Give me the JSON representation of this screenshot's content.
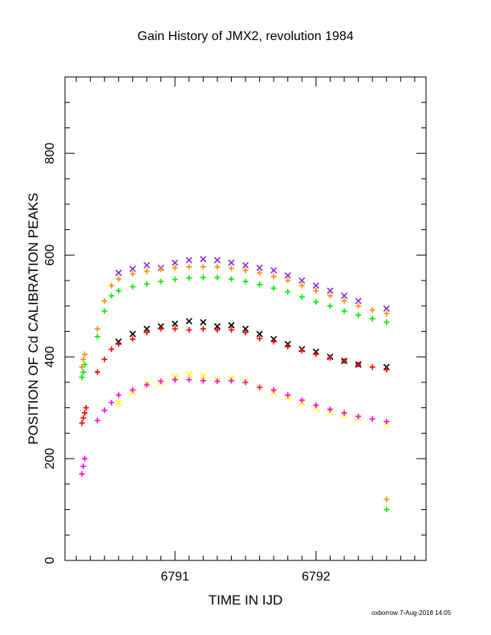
{
  "chart_data": {
    "type": "scatter",
    "title": "Gain History of JMX2, revolution 1984",
    "xlabel": "TIME IN IJD",
    "ylabel": "POSITION OF Cd CALIBRATION PEAKS",
    "xlim": [
      6790.22,
      6792.78
    ],
    "ylim": [
      0,
      950
    ],
    "x_ticks": [
      6791,
      6792
    ],
    "x_tick_labels": [
      "6791",
      "6792"
    ],
    "y_ticks": [
      0,
      200,
      400,
      600,
      800
    ],
    "y_tick_labels": [
      "0",
      "200",
      "400",
      "600",
      "800"
    ],
    "grid": false,
    "legend": "none",
    "series": [
      {
        "color": "#8a2be2",
        "marker": "x",
        "x": [
          6790.6,
          6790.7,
          6790.8,
          6790.9,
          6791.0,
          6791.1,
          6791.2,
          6791.3,
          6791.4,
          6791.5,
          6791.6,
          6791.7,
          6791.8,
          6791.9,
          6792.0,
          6792.1,
          6792.2,
          6792.3,
          6792.5
        ],
        "y": [
          565,
          573,
          580,
          575,
          585,
          590,
          592,
          590,
          585,
          580,
          575,
          570,
          560,
          550,
          540,
          530,
          520,
          510,
          495
        ]
      },
      {
        "color": "#ff8c00",
        "marker": "+",
        "x": [
          6790.45,
          6790.5,
          6790.55,
          6790.6,
          6790.7,
          6790.8,
          6790.9,
          6791.0,
          6791.1,
          6791.2,
          6791.3,
          6791.4,
          6791.5,
          6791.6,
          6791.7,
          6791.8,
          6791.9,
          6792.0,
          6792.1,
          6792.2,
          6792.3,
          6792.4,
          6792.5
        ],
        "y": [
          455,
          510,
          540,
          553,
          563,
          568,
          572,
          575,
          577,
          577,
          577,
          574,
          570,
          565,
          558,
          550,
          540,
          530,
          520,
          510,
          500,
          492,
          485
        ]
      },
      {
        "color": "#00ee00",
        "marker": "+",
        "x": [
          6790.45,
          6790.5,
          6790.55,
          6790.6,
          6790.7,
          6790.8,
          6790.9,
          6791.0,
          6791.1,
          6791.2,
          6791.3,
          6791.4,
          6791.5,
          6791.6,
          6791.7,
          6791.8,
          6791.9,
          6792.0,
          6792.1,
          6792.2,
          6792.3,
          6792.4,
          6792.5
        ],
        "y": [
          440,
          490,
          520,
          530,
          538,
          543,
          548,
          552,
          555,
          556,
          556,
          553,
          548,
          542,
          535,
          528,
          518,
          508,
          500,
          490,
          482,
          475,
          468
        ]
      },
      {
        "color": "#000000",
        "marker": "x",
        "x": [
          6790.6,
          6790.7,
          6790.8,
          6790.9,
          6791.0,
          6791.1,
          6791.2,
          6791.3,
          6791.4,
          6791.5,
          6791.6,
          6791.7,
          6791.8,
          6791.9,
          6792.0,
          6792.1,
          6792.2,
          6792.3,
          6792.5
        ],
        "y": [
          430,
          445,
          455,
          460,
          465,
          470,
          468,
          460,
          462,
          455,
          445,
          435,
          425,
          415,
          410,
          400,
          392,
          385,
          380
        ]
      },
      {
        "color": "#ff0000",
        "marker": "+",
        "x": [
          6790.45,
          6790.5,
          6790.55,
          6790.6,
          6790.7,
          6790.8,
          6790.9,
          6791.0,
          6791.1,
          6791.2,
          6791.3,
          6791.4,
          6791.5,
          6791.6,
          6791.7,
          6791.8,
          6791.9,
          6792.0,
          6792.1,
          6792.2,
          6792.3,
          6792.4,
          6792.5
        ],
        "y": [
          370,
          395,
          415,
          425,
          435,
          448,
          455,
          455,
          453,
          455,
          453,
          453,
          448,
          436,
          430,
          420,
          412,
          405,
          398,
          392,
          385,
          380,
          375
        ]
      },
      {
        "color": "#ffff00",
        "marker": "x",
        "x": [
          6790.6,
          6790.7,
          6790.8,
          6790.9,
          6791.0,
          6791.1,
          6791.2,
          6791.3,
          6791.4,
          6791.5,
          6791.6,
          6791.7,
          6791.8,
          6791.9,
          6792.0,
          6792.1,
          6792.2,
          6792.3,
          6792.5
        ],
        "y": [
          310,
          330,
          345,
          350,
          360,
          365,
          362,
          355,
          358,
          352,
          340,
          330,
          320,
          310,
          300,
          292,
          285,
          280,
          270
        ]
      },
      {
        "color": "#ff00ff",
        "marker": "+",
        "x": [
          6790.45,
          6790.5,
          6790.55,
          6790.6,
          6790.7,
          6790.8,
          6790.9,
          6791.0,
          6791.1,
          6791.2,
          6791.3,
          6791.4,
          6791.5,
          6791.6,
          6791.7,
          6791.8,
          6791.9,
          6792.0,
          6792.1,
          6792.2,
          6792.3,
          6792.4,
          6792.5
        ],
        "y": [
          275,
          295,
          310,
          325,
          335,
          345,
          352,
          355,
          355,
          353,
          352,
          353,
          350,
          340,
          335,
          325,
          315,
          305,
          297,
          290,
          283,
          278,
          273
        ]
      },
      {
        "color": "#ff8c00",
        "marker": "+",
        "x": [
          6790.34,
          6790.35,
          6790.36,
          6792.5
        ],
        "y": [
          380,
          395,
          405,
          120
        ]
      },
      {
        "color": "#00ee00",
        "marker": "+",
        "x": [
          6790.34,
          6790.35,
          6790.36,
          6792.5
        ],
        "y": [
          360,
          370,
          385,
          100
        ]
      },
      {
        "color": "#ff0000",
        "marker": "+",
        "x": [
          6790.34,
          6790.35,
          6790.36,
          6790.37
        ],
        "y": [
          270,
          280,
          290,
          300
        ]
      },
      {
        "color": "#ff00ff",
        "marker": "+",
        "x": [
          6790.34,
          6790.35,
          6790.36
        ],
        "y": [
          170,
          185,
          200
        ]
      }
    ]
  },
  "footer": {
    "credit": "oxborrow  7-Aug-2018 14:05"
  }
}
